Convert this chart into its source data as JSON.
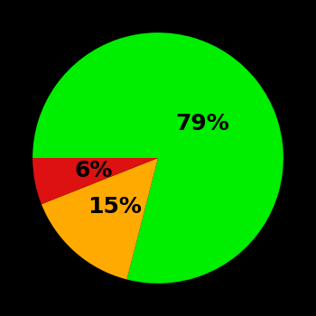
{
  "slices": [
    79,
    15,
    6
  ],
  "labels": [
    "79%",
    "15%",
    "6%"
  ],
  "colors": [
    "#00ee00",
    "#ffaa00",
    "#dd1111"
  ],
  "background_color": "#000000",
  "label_fontsize": 18,
  "label_fontweight": "bold",
  "startangle": 180,
  "counterclock": false,
  "label_radii": [
    0.45,
    0.52,
    0.52
  ],
  "figsize": [
    3.5,
    3.5
  ],
  "dpi": 100
}
